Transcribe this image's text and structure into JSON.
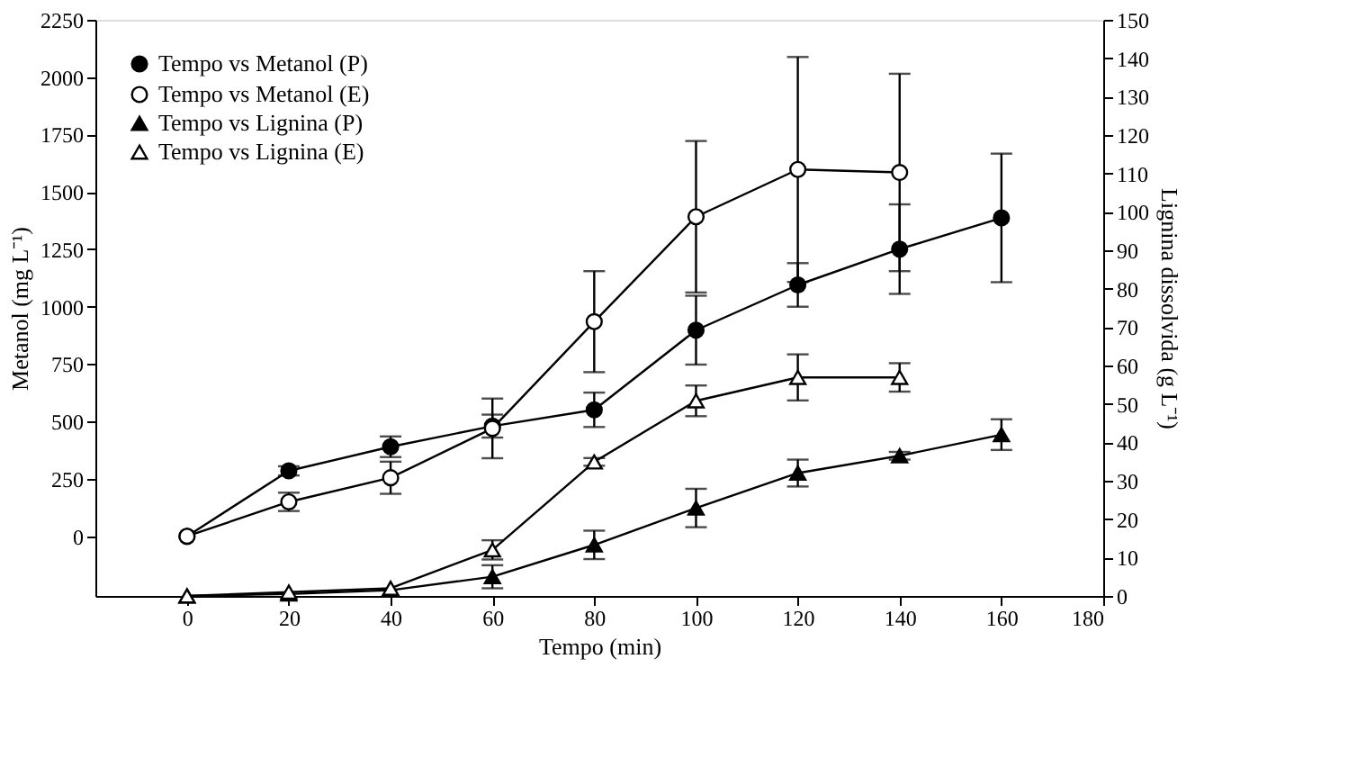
{
  "chart_data": {
    "type": "line",
    "xlabel": "Tempo (min)",
    "ylabel": "Metanol (mg L⁻¹)",
    "y2label": "Lignina dissolvida  (g L⁻¹)",
    "x": [
      0,
      20,
      40,
      60,
      80,
      100,
      120,
      140,
      160
    ],
    "xlim": [
      -18,
      180
    ],
    "xticks": [
      0,
      20,
      40,
      60,
      80,
      100,
      120,
      140,
      160,
      180
    ],
    "ylim": [
      -260,
      2250
    ],
    "yticks": [
      0,
      250,
      500,
      750,
      1000,
      1250,
      1500,
      1750,
      2000,
      2250
    ],
    "y2lim": [
      0,
      150
    ],
    "y2ticks": [
      0,
      10,
      20,
      30,
      40,
      50,
      60,
      70,
      80,
      90,
      100,
      110,
      120,
      130,
      140,
      150
    ],
    "grid": false,
    "legend": "top left",
    "line_style": "solid",
    "series": [
      {
        "name": "Tempo vs Metanol (P)",
        "color": "#000000",
        "marker": "circle",
        "values": [
          0,
          285,
          390,
          480,
          551,
          898,
          1095,
          1251,
          1387
        ],
        "errors": [
          null,
          20,
          45,
          50,
          75,
          150,
          95,
          195,
          280
        ]
      },
      {
        "name": "Tempo vs Metanol (E)",
        "color": "#ffffff",
        "marker": "circle",
        "values": [
          0,
          150,
          255,
          470,
          935,
          1392,
          1598,
          1585,
          null
        ],
        "errors": [
          null,
          40,
          70,
          130,
          220,
          330,
          490,
          430,
          null
        ]
      },
      {
        "name": "Tempo vs Lignina (P)",
        "color": "#000000",
        "marker": "triangle",
        "axis": "y2",
        "values": [
          0,
          0.5,
          1.5,
          5,
          13.3,
          22.9,
          32,
          36.5,
          42
        ],
        "errors": [
          null,
          null,
          null,
          3,
          3.7,
          5,
          3.5,
          1,
          4
        ]
      },
      {
        "name": "Tempo vs Lignina (E)",
        "color": "#ffffff",
        "marker": "triangle",
        "axis": "y2",
        "values": [
          0,
          1,
          2,
          12,
          34.9,
          50.8,
          56.9,
          56.9,
          null
        ],
        "errors": [
          null,
          null,
          null,
          2.5,
          1,
          4,
          6,
          3.7,
          null
        ]
      }
    ]
  }
}
